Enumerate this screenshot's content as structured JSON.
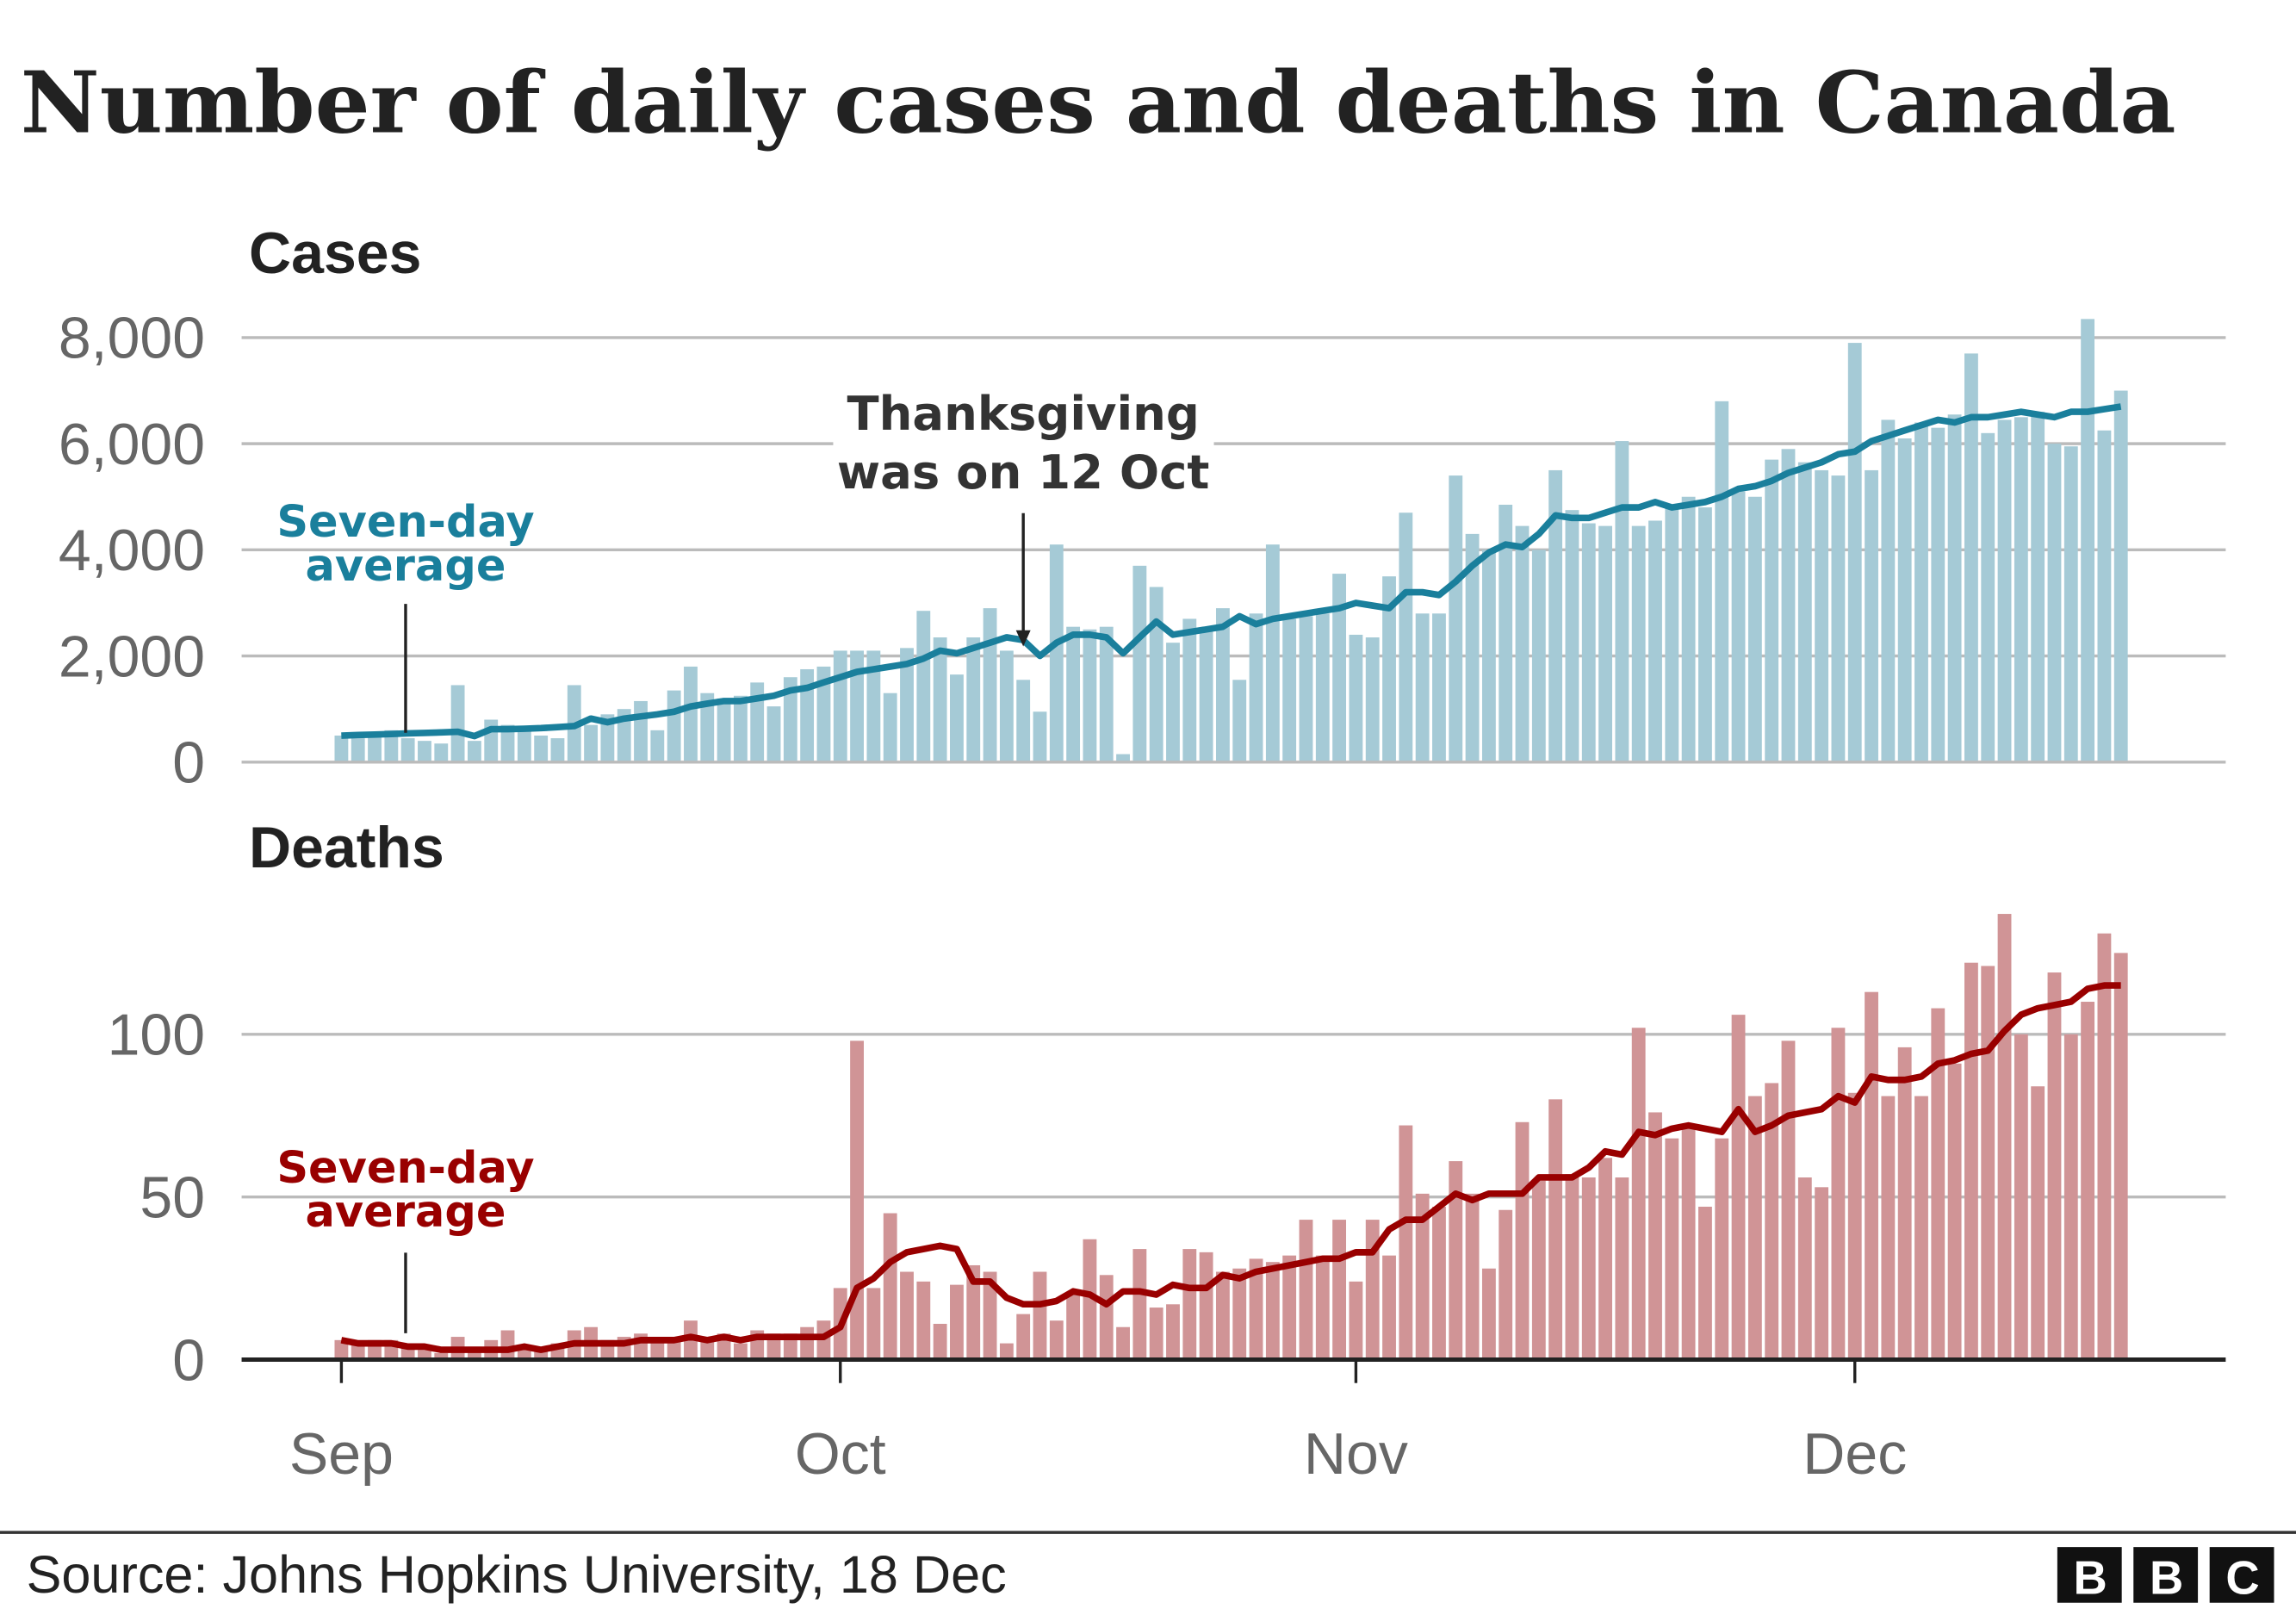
{
  "title": "Number of daily cases and deaths in Canada",
  "source": "Source: Johns Hopkins University, 18 Dec",
  "logo": "BBC",
  "chart_data": [
    {
      "type": "bar",
      "title": "Cases",
      "x": [
        0,
        1,
        2,
        3,
        4,
        5,
        6,
        7,
        8,
        9,
        10,
        11,
        12,
        13,
        14,
        15,
        16,
        17,
        18,
        19,
        20,
        21,
        22,
        23,
        24,
        25,
        26,
        27,
        28,
        29,
        30,
        31,
        32,
        33,
        34,
        35,
        36,
        37,
        38,
        39,
        40,
        41,
        42,
        43,
        44,
        45,
        46,
        47,
        48,
        49,
        50,
        51,
        52,
        53,
        54,
        55,
        56,
        57,
        58,
        59,
        60,
        61,
        62,
        63,
        64,
        65,
        66,
        67,
        68,
        69,
        70,
        71,
        72,
        73,
        74,
        75,
        76,
        77,
        78,
        79,
        80,
        81,
        82,
        83,
        84,
        85,
        86,
        87,
        88,
        89,
        90,
        91,
        92,
        93,
        94,
        95,
        96,
        97,
        98,
        99,
        100,
        101,
        102,
        103,
        104,
        105,
        106,
        107
      ],
      "xlim": [
        -6,
        113.3
      ],
      "ylim": [
        0,
        8500
      ],
      "yticks": [
        0,
        {
          "value": 2000,
          "label": "2,000"
        },
        {
          "value": 4000,
          "label": "4,000"
        },
        {
          "value": 6000,
          "label": "6,000"
        },
        {
          "value": 8000,
          "label": "8,000"
        }
      ],
      "grid": true,
      "series": [
        {
          "color": "#a5cad6",
          "values": [
            500,
            450,
            500,
            600,
            450,
            400,
            350,
            1450,
            400,
            800,
            700,
            600,
            500,
            450,
            1450,
            700,
            900,
            1000,
            1150,
            600,
            1350,
            1800,
            1300,
            1200,
            1250,
            1500,
            1050,
            1600,
            1750,
            1800,
            2100,
            2100,
            2100,
            1300,
            2150,
            2850,
            2350,
            1650,
            2350,
            2900,
            2100,
            1550,
            950,
            4100,
            2550,
            2500,
            2550,
            150,
            3700,
            3300,
            2250,
            2700,
            2500,
            2900,
            1550,
            2800,
            4100,
            2700,
            2750,
            2800,
            3550,
            2400,
            2350,
            3500,
            4700,
            2800,
            2800,
            5400,
            4300,
            4000,
            4850,
            4450,
            4000,
            5500,
            4750,
            4500,
            4450,
            6050,
            4450,
            4550,
            4800,
            5000,
            4800,
            6800,
            5100,
            5000,
            5700,
            5900,
            5650,
            5500,
            5400,
            7900,
            5500,
            6450,
            6100,
            6400,
            6300,
            6550,
            7700,
            6200,
            6450,
            6500,
            6600,
            6000,
            5950,
            8350,
            6250,
            7000
          ]
        },
        {
          "name": "Seven-day average",
          "color": "#1a7f9c",
          "values": [
            500,
            510,
            520,
            530,
            540,
            550,
            560,
            570,
            490,
            620,
            620,
            630,
            640,
            660,
            680,
            820,
            750,
            820,
            860,
            900,
            950,
            1050,
            1100,
            1150,
            1150,
            1200,
            1250,
            1350,
            1400,
            1500,
            1600,
            1700,
            1750,
            1800,
            1850,
            1950,
            2100,
            2050,
            2150,
            2250,
            2350,
            2300,
            2000,
            2250,
            2400,
            2400,
            2350,
            2050,
            2350,
            2650,
            2400,
            2450,
            2500,
            2550,
            2750,
            2600,
            2700,
            2750,
            2800,
            2850,
            2900,
            3000,
            2950,
            2900,
            3200,
            3200,
            3150,
            3400,
            3700,
            3950,
            4100,
            4050,
            4300,
            4650,
            4600,
            4600,
            4700,
            4800,
            4800,
            4900,
            4800,
            4850,
            4900,
            5000,
            5150,
            5200,
            5300,
            5450,
            5550,
            5650,
            5800,
            5850,
            6050,
            6150,
            6250,
            6350,
            6450,
            6400,
            6500,
            6500,
            6550,
            6600,
            6550,
            6500,
            6600,
            6600,
            6650,
            6700
          ]
        }
      ],
      "annotation": {
        "text": "Thanksgiving was on 12 Oct",
        "x": 41
      }
    },
    {
      "type": "bar",
      "title": "Deaths",
      "x": [
        0,
        1,
        2,
        3,
        4,
        5,
        6,
        7,
        8,
        9,
        10,
        11,
        12,
        13,
        14,
        15,
        16,
        17,
        18,
        19,
        20,
        21,
        22,
        23,
        24,
        25,
        26,
        27,
        28,
        29,
        30,
        31,
        32,
        33,
        34,
        35,
        36,
        37,
        38,
        39,
        40,
        41,
        42,
        43,
        44,
        45,
        46,
        47,
        48,
        49,
        50,
        51,
        52,
        53,
        54,
        55,
        56,
        57,
        58,
        59,
        60,
        61,
        62,
        63,
        64,
        65,
        66,
        67,
        68,
        69,
        70,
        71,
        72,
        73,
        74,
        75,
        76,
        77,
        78,
        79,
        80,
        81,
        82,
        83,
        84,
        85,
        86,
        87,
        88,
        89,
        90,
        91,
        92,
        93,
        94,
        95,
        96,
        97,
        98,
        99,
        100,
        101,
        102,
        103,
        104,
        105,
        106,
        107
      ],
      "xlim": [
        -6,
        113.3
      ],
      "xticks": [
        {
          "value": 0,
          "label": "Sep"
        },
        {
          "value": 30,
          "label": "Oct"
        },
        {
          "value": 61,
          "label": "Nov"
        },
        {
          "value": 91,
          "label": "Dec"
        }
      ],
      "ylim": [
        0,
        140
      ],
      "yticks": [
        0,
        50,
        100
      ],
      "grid": true,
      "series": [
        {
          "color": "#d09496",
          "values": [
            6,
            5,
            6,
            6,
            4,
            3,
            2,
            7,
            4,
            6,
            9,
            3,
            3,
            5,
            9,
            10,
            6,
            7,
            8,
            6,
            7,
            12,
            7,
            8,
            5,
            9,
            8,
            8,
            10,
            12,
            22,
            98,
            22,
            45,
            27,
            24,
            11,
            23,
            29,
            27,
            5,
            14,
            27,
            12,
            20,
            37,
            26,
            10,
            34,
            16,
            17,
            34,
            33,
            27,
            28,
            31,
            30,
            32,
            43,
            32,
            43,
            24,
            43,
            32,
            72,
            51,
            47,
            61,
            51,
            28,
            46,
            73,
            55,
            80,
            57,
            56,
            62,
            56,
            102,
            76,
            68,
            72,
            47,
            68,
            106,
            81,
            85,
            98,
            56,
            53,
            102,
            82,
            113,
            81,
            96,
            81,
            108,
            91,
            122,
            121,
            137,
            100,
            84,
            119,
            100,
            110,
            131,
            125
          ]
        },
        {
          "name": "Seven-day average",
          "color": "#990000",
          "values": [
            6,
            5,
            5,
            5,
            4,
            4,
            3,
            3,
            3,
            3,
            3,
            4,
            3,
            4,
            5,
            5,
            5,
            5,
            6,
            6,
            6,
            7,
            6,
            7,
            6,
            7,
            7,
            7,
            7,
            7,
            10,
            22,
            25,
            30,
            33,
            34,
            35,
            34,
            24,
            24,
            19,
            17,
            17,
            18,
            21,
            20,
            17,
            21,
            21,
            20,
            23,
            22,
            22,
            26,
            25,
            27,
            28,
            29,
            30,
            31,
            31,
            33,
            33,
            40,
            43,
            43,
            47,
            51,
            49,
            51,
            51,
            51,
            56,
            56,
            56,
            59,
            64,
            63,
            70,
            69,
            71,
            72,
            71,
            70,
            77,
            70,
            72,
            75,
            76,
            77,
            81,
            79,
            87,
            86,
            86,
            87,
            91,
            92,
            94,
            95,
            101,
            106,
            108,
            109,
            110,
            114,
            115,
            115
          ]
        }
      ]
    }
  ]
}
